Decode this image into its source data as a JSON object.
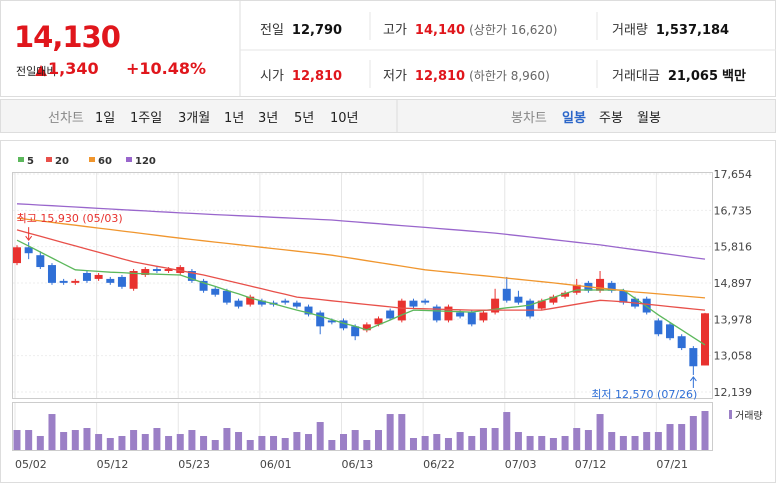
{
  "header": {
    "price": "14,130",
    "change_label": "전일대비",
    "change": "1,340",
    "change_pct": "+10.48%",
    "stats": [
      {
        "label": "전일",
        "value": "12,790"
      },
      {
        "label": "고가",
        "value": "14,140",
        "note": "(상한가 16,620)"
      },
      {
        "label": "거래량",
        "value": "1,537,184"
      },
      {
        "label": "시가",
        "value": "12,810"
      },
      {
        "label": "저가",
        "value": "12,810",
        "note": "(하한가 8,960)"
      },
      {
        "label": "거래대금",
        "value": "21,065",
        "unit": "백만"
      }
    ]
  },
  "tabs": {
    "line_label": "선차트",
    "periods": [
      "1일",
      "1주일",
      "3개월",
      "1년",
      "3년",
      "5년",
      "10년"
    ],
    "candle_label": "봉차트",
    "candles": [
      "일봉",
      "주봉",
      "월봉"
    ],
    "selected": "일봉"
  },
  "chart_data": {
    "type": "candlestick",
    "up_color": "#e8322f",
    "down_color": "#2f6fd6",
    "grid": true,
    "categories": [
      "05/02",
      null,
      null,
      null,
      null,
      null,
      null,
      "05/12",
      null,
      null,
      null,
      null,
      null,
      null,
      "05/23",
      null,
      null,
      null,
      null,
      null,
      null,
      "06/01",
      null,
      null,
      null,
      null,
      null,
      null,
      "06/13",
      null,
      null,
      null,
      null,
      null,
      null,
      "06/22",
      null,
      null,
      null,
      null,
      null,
      null,
      "07/03",
      null,
      null,
      null,
      null,
      null,
      "07/12",
      null,
      null,
      null,
      null,
      null,
      null,
      "07/21",
      null,
      null,
      null,
      null
    ],
    "open": [
      15400,
      15800,
      15600,
      15350,
      14950,
      14900,
      15150,
      15000,
      15000,
      15050,
      14750,
      15100,
      15250,
      15200,
      15150,
      15200,
      14950,
      14750,
      14700,
      14450,
      14350,
      14450,
      14400,
      14450,
      14400,
      14300,
      14150,
      13950,
      13950,
      13800,
      13700,
      13850,
      14200,
      13950,
      14450,
      14450,
      14300,
      13950,
      14150,
      14150,
      13950,
      14150,
      14750,
      14550,
      14450,
      14250,
      14400,
      14550,
      14650,
      14900,
      14700,
      14900,
      14700,
      14500,
      14500,
      13950,
      13850,
      13550,
      13250,
      12810
    ],
    "high": [
      15850,
      15930,
      15700,
      15400,
      15000,
      15000,
      15200,
      15150,
      15050,
      15100,
      15250,
      15300,
      15300,
      15300,
      15350,
      15250,
      15000,
      14800,
      14750,
      14500,
      14600,
      14500,
      14450,
      14500,
      14450,
      14350,
      14200,
      14000,
      14000,
      13850,
      13900,
      14050,
      14250,
      14500,
      14500,
      14500,
      14350,
      14350,
      14200,
      14200,
      14200,
      14750,
      15050,
      14700,
      14500,
      14500,
      14600,
      14700,
      15000,
      14950,
      15200,
      14950,
      14750,
      14550,
      14550,
      14000,
      13900,
      13600,
      13300,
      14140
    ],
    "low": [
      15350,
      15500,
      15250,
      14850,
      14850,
      14850,
      14900,
      14950,
      14850,
      14750,
      14700,
      15050,
      15150,
      15150,
      15100,
      14900,
      14650,
      14550,
      14350,
      14250,
      14300,
      14300,
      14300,
      14350,
      14250,
      14050,
      13600,
      13850,
      13700,
      13450,
      13650,
      13800,
      13950,
      13900,
      14250,
      14350,
      13900,
      13900,
      14000,
      13800,
      13900,
      14100,
      14400,
      14350,
      14000,
      14200,
      14350,
      14500,
      14600,
      14650,
      14650,
      14650,
      14350,
      14250,
      14100,
      13550,
      13450,
      13200,
      12570,
      12810
    ],
    "close": [
      15800,
      15650,
      15300,
      14900,
      14900,
      14950,
      14950,
      15100,
      14900,
      14800,
      15200,
      15250,
      15200,
      15250,
      15300,
      14950,
      14700,
      14600,
      14400,
      14300,
      14550,
      14350,
      14350,
      14400,
      14300,
      14100,
      13800,
      13900,
      13750,
      13550,
      13850,
      14000,
      14000,
      14450,
      14300,
      14400,
      13950,
      14300,
      14050,
      13850,
      14150,
      14500,
      14450,
      14400,
      14050,
      14450,
      14550,
      14650,
      14850,
      14700,
      15000,
      14700,
      14400,
      14300,
      14150,
      13600,
      13500,
      13250,
      12790,
      14130
    ],
    "ylim": [
      12139,
      17654
    ],
    "yticks": [
      {
        "value": 12139,
        "label": "12,139"
      },
      {
        "value": 13058,
        "label": "13,058"
      },
      {
        "value": 13978,
        "label": "13,978"
      },
      {
        "value": 14897,
        "label": "14,897"
      },
      {
        "value": 15816,
        "label": "15,816"
      },
      {
        "value": 16735,
        "label": "16,735"
      },
      {
        "value": 17654,
        "label": "17,654"
      }
    ],
    "series": [
      {
        "name": "5",
        "color": "#5cb85c",
        "values": [
          15980,
          15830,
          15680,
          15530,
          15380,
          15230,
          15210,
          15190,
          15170,
          15160,
          15140,
          15130,
          15120,
          15110,
          15100,
          15000,
          14900,
          14810,
          14710,
          14620,
          14520,
          14440,
          14370,
          14290,
          14210,
          14140,
          14060,
          13970,
          13880,
          13800,
          13710,
          13840,
          13960,
          14090,
          14210,
          14200,
          14190,
          14180,
          14170,
          14160,
          14200,
          14230,
          14270,
          14300,
          14340,
          14440,
          14530,
          14630,
          14720,
          14720,
          14720,
          14720,
          14720,
          14510,
          14300,
          14090,
          13900,
          13710,
          13520,
          13330
        ]
      },
      {
        "name": "20",
        "color": "#e8504a",
        "values": [
          16240,
          16159,
          16078,
          15997,
          15916,
          15835,
          15754,
          15673,
          15592,
          15511,
          15430,
          15375,
          15320,
          15265,
          15210,
          15155,
          15100,
          15030,
          14960,
          14890,
          14820,
          14750,
          14680,
          14610,
          14540,
          14509,
          14478,
          14447,
          14416,
          14384,
          14353,
          14322,
          14291,
          14260,
          14252,
          14243,
          14235,
          14227,
          14218,
          14210,
          14210,
          14210,
          14210,
          14210,
          14210,
          14210,
          14260,
          14310,
          14360,
          14410,
          14460,
          14440,
          14420,
          14390,
          14360,
          14330,
          14300,
          14270,
          14240,
          14210
        ]
      },
      {
        "name": "60",
        "color": "#f0962e",
        "values": [
          16540,
          16504,
          16467,
          16431,
          16394,
          16358,
          16321,
          16285,
          16249,
          16212,
          16176,
          16139,
          16103,
          16066,
          16030,
          15997,
          15964,
          15931,
          15898,
          15865,
          15832,
          15799,
          15766,
          15733,
          15700,
          15667,
          15634,
          15600,
          15554,
          15508,
          15461,
          15415,
          15369,
          15323,
          15276,
          15230,
          15200,
          15170,
          15140,
          15110,
          15080,
          15050,
          15020,
          14990,
          14960,
          14930,
          14900,
          14867,
          14834,
          14801,
          14769,
          14736,
          14703,
          14670,
          14645,
          14620,
          14595,
          14570,
          14545,
          14520
        ]
      },
      {
        "name": "120",
        "color": "#9966cc",
        "values": [
          16900,
          16884,
          16867,
          16851,
          16834,
          16818,
          16802,
          16785,
          16769,
          16752,
          16736,
          16720,
          16703,
          16687,
          16670,
          16656,
          16642,
          16628,
          16614,
          16600,
          16587,
          16573,
          16559,
          16545,
          16531,
          16518,
          16504,
          16490,
          16466,
          16443,
          16419,
          16396,
          16372,
          16349,
          16325,
          16302,
          16278,
          16255,
          16231,
          16208,
          16184,
          16160,
          16127,
          16093,
          16060,
          16027,
          15993,
          15960,
          15927,
          15893,
          15860,
          15820,
          15780,
          15740,
          15700,
          15660,
          15620,
          15580,
          15540,
          15500
        ]
      }
    ],
    "volume": {
      "name": "거래량",
      "color": "#9b7fc6",
      "values": [
        788000,
        788000,
        552000,
        1418000,
        709000,
        788000,
        867000,
        630000,
        473000,
        552000,
        788000,
        630000,
        867000,
        552000,
        630000,
        788000,
        552000,
        394000,
        867000,
        709000,
        394000,
        552000,
        552000,
        473000,
        709000,
        630000,
        1103000,
        394000,
        630000,
        788000,
        394000,
        788000,
        1418000,
        1418000,
        473000,
        552000,
        630000,
        473000,
        709000,
        552000,
        867000,
        867000,
        1497000,
        709000,
        552000,
        552000,
        473000,
        552000,
        867000,
        788000,
        1418000,
        709000,
        552000,
        552000,
        709000,
        709000,
        1024000,
        1024000,
        1340000,
        1537184
      ]
    },
    "annotations": [
      "최고 15,930 (05/03)",
      "최저 12,570 (07/26)"
    ]
  }
}
